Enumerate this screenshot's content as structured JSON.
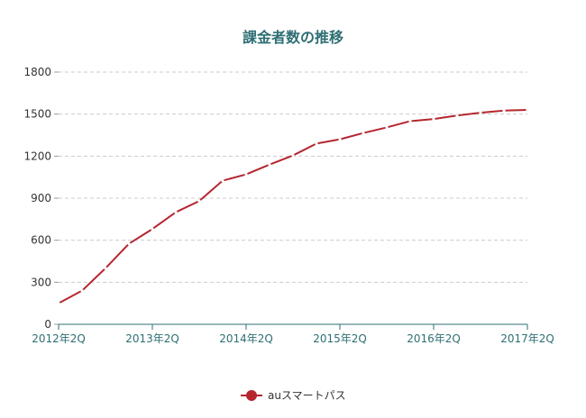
{
  "chart_data": {
    "type": "line",
    "title": "課金者数の推移",
    "xlabel": "",
    "ylabel": "",
    "x": [
      "2012年2Q",
      "2012年3Q",
      "2012年4Q",
      "2013年1Q",
      "2013年2Q",
      "2013年3Q",
      "2013年4Q",
      "2014年1Q",
      "2014年2Q",
      "2014年3Q",
      "2014年4Q",
      "2015年1Q",
      "2015年2Q",
      "2015年3Q",
      "2015年4Q",
      "2016年1Q",
      "2016年2Q",
      "2016年3Q",
      "2016年4Q",
      "2017年1Q",
      "2017年2Q"
    ],
    "x_tick_labels": [
      "2012年2Q",
      "2013年2Q",
      "2014年2Q",
      "2015年2Q",
      "2016年2Q",
      "2017年2Q"
    ],
    "y_ticks": [
      0,
      300,
      600,
      900,
      1200,
      1500,
      1800
    ],
    "ylim": [
      0,
      1800
    ],
    "grid": true,
    "legend_position": "bottom-center",
    "series": [
      {
        "name": "auスマートパス",
        "color": "#b5262f",
        "values": [
          150,
          240,
          400,
          575,
          680,
          800,
          880,
          1025,
          1070,
          1140,
          1205,
          1290,
          1320,
          1365,
          1405,
          1450,
          1465,
          1490,
          1510,
          1525,
          1530
        ]
      }
    ]
  }
}
